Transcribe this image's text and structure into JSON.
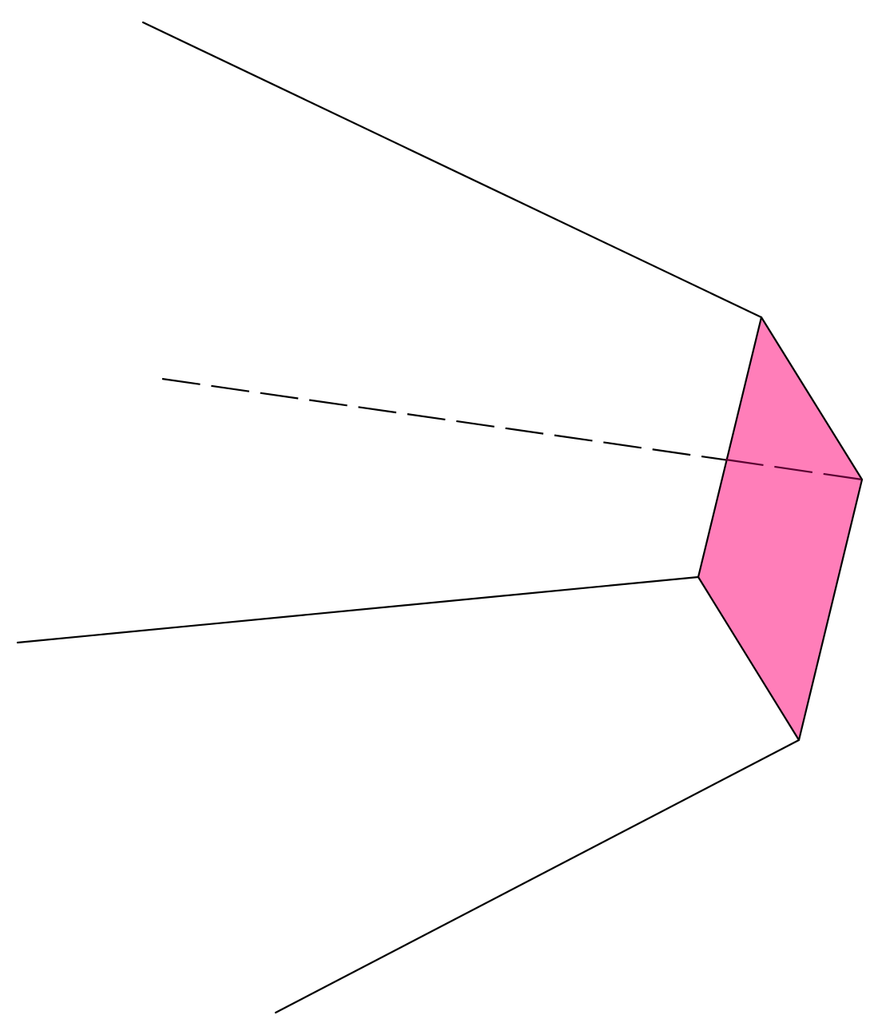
{
  "figure": {
    "kind": "3D wireframe solid (frustum / pyramid-like shape) viewed in perspective",
    "colors": {
      "background": "#ffffff",
      "edge": "#000000",
      "face_fill": "#ff7eb9"
    },
    "edges": [
      {
        "id": "upper-lateral-edge",
        "style": "solid"
      },
      {
        "id": "middle-lateral-edge",
        "style": "solid"
      },
      {
        "id": "lower-lateral-edge",
        "style": "solid"
      },
      {
        "id": "rear-lateral-edge",
        "style": "dashed"
      }
    ],
    "faces": [
      {
        "id": "end-face",
        "filled": true,
        "shape": "quadrilateral"
      }
    ]
  }
}
